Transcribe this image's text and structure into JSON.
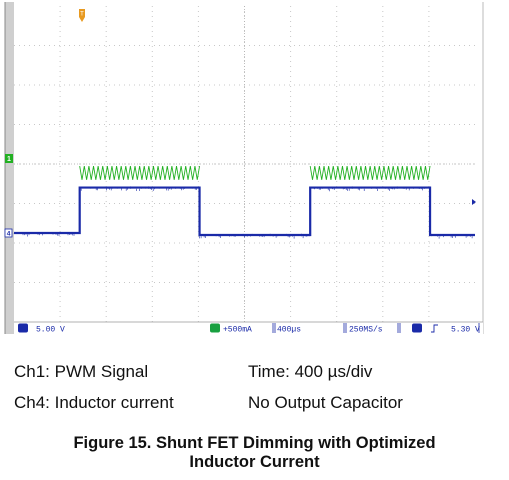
{
  "scope": {
    "status_bar": {
      "ch1_scale": "5.00 V",
      "ch4_scale": "+500mA",
      "timebase": "400µs",
      "sample_rate": "250MS/s",
      "trigger_level": "5.30 V"
    },
    "markers": {
      "ch1": "1",
      "ch4": "4",
      "trigger": "T"
    },
    "colors": {
      "ch1": "#22b022",
      "ch4": "#1a2aa8",
      "grid": "#c8c8c8",
      "status": "#1a2aa8",
      "ch4_badge": "#18a040",
      "trigger": "#e89a20"
    }
  },
  "legend": {
    "ch1_label": "Ch1: PWM Signal",
    "ch4_label": "Ch4: Inductor current",
    "time_label": "Time: 400 µs/div",
    "cap_label": "No Output Capacitor"
  },
  "caption": {
    "line1": "Figure 15. Shunt FET Dimming with Optimized",
    "line2": "Inductor Current"
  },
  "chart_data": {
    "type": "line",
    "title": "",
    "grid": true,
    "x_divisions": 10,
    "y_divisions": 8,
    "x_unit": "µs",
    "x_per_div": 400,
    "x_range": [
      0,
      4000
    ],
    "pwm_low_intervals_us": [
      [
        0,
        570
      ],
      [
        1610,
        2570
      ],
      [
        3610,
        4000
      ]
    ],
    "series": [
      {
        "name": "Ch1: PWM Signal",
        "kind": "pwm",
        "high_v": 5,
        "low_v": 0,
        "volts_per_div": 5,
        "dense_period_us": 4,
        "sparse_period_us": 40
      },
      {
        "name": "Ch4: Inductor current",
        "kind": "step",
        "amps_per_div": 0.5,
        "x": [
          0,
          570,
          570,
          1610,
          1610,
          2570,
          2570,
          3610,
          3610,
          4000
        ],
        "y_div": [
          0,
          0,
          1.15,
          1.15,
          -0.05,
          -0.05,
          1.15,
          1.15,
          -0.05,
          -0.05
        ]
      }
    ]
  }
}
